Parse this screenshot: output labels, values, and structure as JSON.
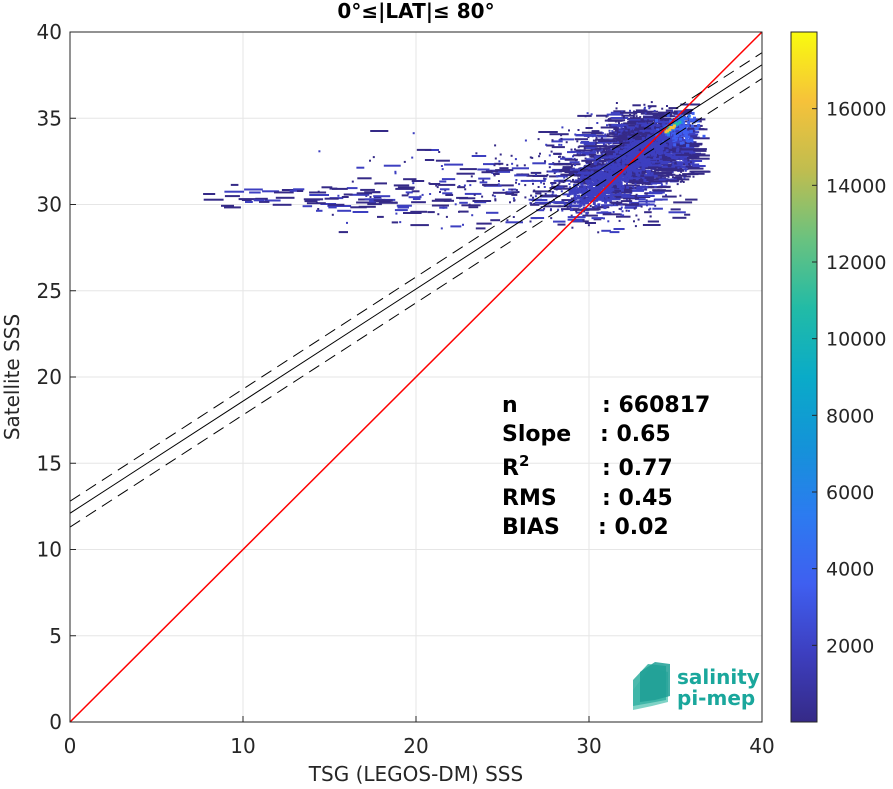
{
  "title": "0°≤|LAT|≤ 80°",
  "xlabel": "TSG (LEGOS-DM) SSS",
  "ylabel": "Satellite SSS",
  "logo": {
    "line1": "salinity",
    "line2": "pi-mep"
  },
  "stats": [
    {
      "key": "n",
      "value": ": 660817"
    },
    {
      "key": "Slope",
      "value": ": 0.65"
    },
    {
      "key": "R",
      "sup": "2",
      "value": ": 0.77"
    },
    {
      "key": "RMS",
      "value": ": 0.45"
    },
    {
      "key": "BIAS",
      "value": ": 0.02"
    }
  ],
  "colors": {
    "one_to_one": "#ff0000",
    "fit": "#000000",
    "grid": "#e6e6e6"
  },
  "chart_data": {
    "type": "heatmap",
    "title": "0°≤|LAT|≤ 80°",
    "xlabel": "TSG (LEGOS-DM) SSS",
    "ylabel": "Satellite SSS",
    "xlim": [
      0,
      40
    ],
    "ylim": [
      0,
      40
    ],
    "xticks": [
      0,
      10,
      20,
      30,
      40
    ],
    "yticks": [
      0,
      5,
      10,
      15,
      20,
      25,
      30,
      35,
      40
    ],
    "grid": true,
    "colormap": "parula",
    "colorbar": {
      "range": [
        0,
        18000
      ],
      "ticks": [
        2000,
        4000,
        6000,
        8000,
        10000,
        12000,
        14000,
        16000
      ]
    },
    "lines": [
      {
        "name": "1:1",
        "style": "solid",
        "color": "#ff0000",
        "x": [
          0,
          40
        ],
        "y": [
          0,
          40
        ]
      },
      {
        "name": "fit",
        "style": "solid",
        "color": "#000000",
        "x": [
          0,
          40
        ],
        "y": [
          12.1,
          38.1
        ]
      },
      {
        "name": "fit-upper",
        "style": "dashed",
        "color": "#000000",
        "x": [
          0,
          40
        ],
        "y": [
          12.8,
          38.8
        ]
      },
      {
        "name": "fit-lower",
        "style": "dashed",
        "color": "#000000",
        "x": [
          0,
          40
        ],
        "y": [
          11.3,
          37.3
        ]
      }
    ],
    "density_clusters": [
      {
        "x_center": 33.5,
        "y_center": 33.5,
        "x_spread": 1.6,
        "y_spread": 1.0,
        "weight": 0.55
      },
      {
        "x_center": 31.0,
        "y_center": 31.8,
        "x_spread": 1.8,
        "y_spread": 1.2,
        "weight": 0.3
      },
      {
        "x_center": 25.0,
        "y_center": 31.0,
        "x_spread": 5.0,
        "y_spread": 1.2,
        "weight": 0.12
      },
      {
        "x_center": 15.0,
        "y_center": 30.5,
        "x_spread": 5.0,
        "y_spread": 0.4,
        "weight": 0.03
      }
    ],
    "peak": {
      "x": 35.0,
      "y": 34.8,
      "count": 18000
    }
  }
}
